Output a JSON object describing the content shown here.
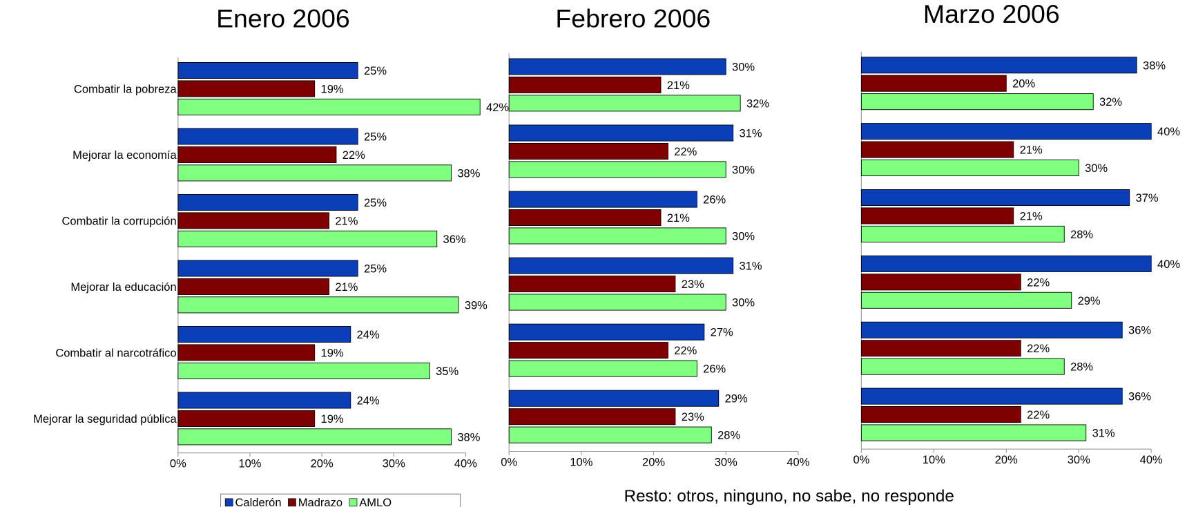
{
  "chart_data": [
    {
      "type": "bar",
      "orientation": "horizontal",
      "title": "Enero 2006",
      "categories": [
        "Combatir la pobreza",
        "Mejorar la economía",
        "Combatir la corrupción",
        "Mejorar la educación",
        "Combatir al narcotráfico",
        "Mejorar la seguridad pública"
      ],
      "series": [
        {
          "name": "Calderón",
          "color": "#0b3fb8",
          "values": [
            25,
            25,
            25,
            25,
            24,
            24
          ],
          "value_labels": [
            "25%",
            "25%",
            "25%",
            "25%",
            "24%",
            "24%"
          ]
        },
        {
          "name": "Madrazo",
          "color": "#7f0000",
          "values": [
            19,
            22,
            21,
            21,
            19,
            19
          ],
          "value_labels": [
            "19%",
            "22%",
            "21%",
            "21%",
            "19%",
            "19%"
          ]
        },
        {
          "name": "AMLO",
          "color": "#80ff80",
          "values": [
            42,
            38,
            36,
            39,
            35,
            38
          ],
          "value_labels": [
            "42%",
            "38%",
            "36%",
            "39%",
            "35%",
            "38%"
          ]
        }
      ],
      "xlim": [
        0,
        40
      ],
      "xticks": [
        {
          "value": 0,
          "label": "0%"
        },
        {
          "value": 10,
          "label": "10%"
        },
        {
          "value": 20,
          "label": "20%"
        },
        {
          "value": 30,
          "label": "30%"
        },
        {
          "value": 40,
          "label": "40%"
        }
      ],
      "legend": "bottom"
    },
    {
      "type": "bar",
      "orientation": "horizontal",
      "title": "Febrero 2006",
      "series": [
        {
          "color": "#0b3fb8",
          "values": [
            30,
            31,
            26,
            31,
            27,
            29
          ],
          "value_labels": [
            "30%",
            "31%",
            "26%",
            "31%",
            "27%",
            "29%"
          ]
        },
        {
          "color": "#7f0000",
          "values": [
            21,
            22,
            21,
            23,
            22,
            23
          ],
          "value_labels": [
            "21%",
            "22%",
            "21%",
            "23%",
            "22%",
            "23%"
          ]
        },
        {
          "color": "#80ff80",
          "values": [
            32,
            30,
            30,
            30,
            26,
            28
          ],
          "value_labels": [
            "32%",
            "30%",
            "30%",
            "30%",
            "26%",
            "28%"
          ]
        }
      ],
      "xlim": [
        0,
        40
      ],
      "xticks": [
        {
          "value": 0,
          "label": "0%"
        },
        {
          "value": 10,
          "label": "10%"
        },
        {
          "value": 20,
          "label": "20%"
        },
        {
          "value": 30,
          "label": "30%"
        },
        {
          "value": 40,
          "label": "40%"
        }
      ],
      "annotation": "Resto: otros, ninguno, no sabe, no responde"
    },
    {
      "type": "bar",
      "orientation": "horizontal",
      "title": "Marzo 2006",
      "series": [
        {
          "color": "#0b3fb8",
          "values": [
            38,
            40,
            37,
            40,
            36,
            36
          ],
          "value_labels": [
            "38%",
            "40%",
            "37%",
            "40%",
            "36%",
            "36%"
          ]
        },
        {
          "color": "#7f0000",
          "values": [
            20,
            21,
            21,
            22,
            22,
            22
          ],
          "value_labels": [
            "20%",
            "21%",
            "21%",
            "22%",
            "22%",
            "22%"
          ]
        },
        {
          "color": "#80ff80",
          "values": [
            32,
            30,
            28,
            29,
            28,
            31
          ],
          "value_labels": [
            "32%",
            "30%",
            "28%",
            "29%",
            "28%",
            "31%"
          ]
        }
      ],
      "xlim": [
        0,
        40
      ],
      "xticks": [
        {
          "value": 0,
          "label": "0%"
        },
        {
          "value": 10,
          "label": "10%"
        },
        {
          "value": 20,
          "label": "20%"
        },
        {
          "value": 30,
          "label": "30%"
        },
        {
          "value": 40,
          "label": "40%"
        }
      ]
    }
  ]
}
